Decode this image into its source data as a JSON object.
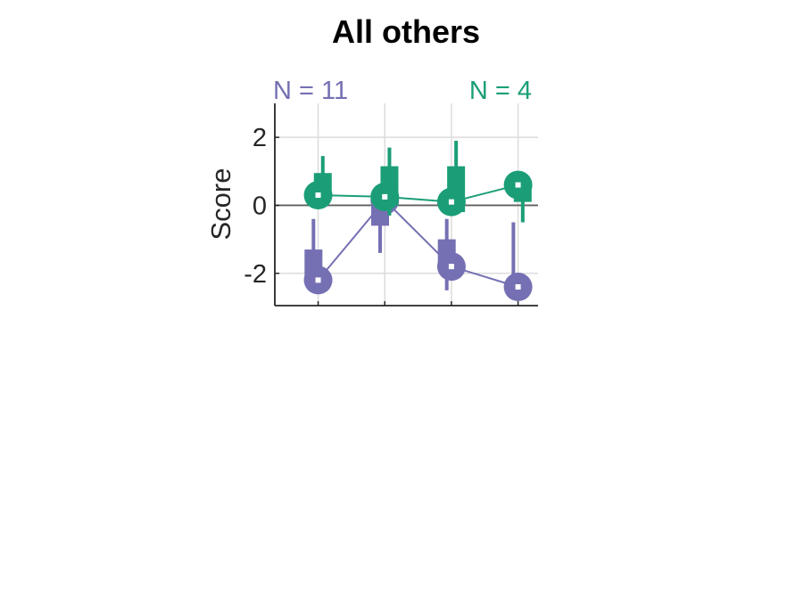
{
  "chart_data": {
    "type": "scatter",
    "title": "All others",
    "ylabel": "Score",
    "xlabel": "",
    "ylim": [
      -2.95,
      3.0
    ],
    "xlim": [
      0.35,
      4.3
    ],
    "x": [
      1,
      2,
      3,
      4
    ],
    "yticks": [
      -2,
      0,
      2
    ],
    "ytick_labels": [
      "-2",
      "0",
      "2"
    ],
    "grid": true,
    "zero_line": true,
    "series": [
      {
        "name": "",
        "n_label": "N = 11",
        "color": "#7570b3",
        "median": [
          -2.2,
          0.15,
          -1.8,
          -2.4
        ],
        "iqr": [
          [
            -2.2,
            -1.3
          ],
          [
            -0.6,
            0.25
          ],
          [
            -1.8,
            -1.0
          ],
          [
            -2.4,
            -2.4
          ]
        ],
        "whisker": [
          [
            -2.2,
            -0.4
          ],
          [
            -1.4,
            0.3
          ],
          [
            -2.5,
            -0.4
          ],
          [
            -2.4,
            -0.5
          ]
        ]
      },
      {
        "name": "",
        "n_label": "N = 4",
        "color": "#1b9e77",
        "median": [
          0.3,
          0.25,
          0.1,
          0.6
        ],
        "iqr": [
          [
            0.2,
            0.95
          ],
          [
            0.0,
            1.15
          ],
          [
            -0.2,
            1.15
          ],
          [
            0.1,
            0.6
          ]
        ],
        "whisker": [
          [
            0.3,
            1.45
          ],
          [
            -0.3,
            1.7
          ],
          [
            -0.2,
            1.9
          ],
          [
            -0.5,
            0.6
          ]
        ]
      }
    ]
  }
}
